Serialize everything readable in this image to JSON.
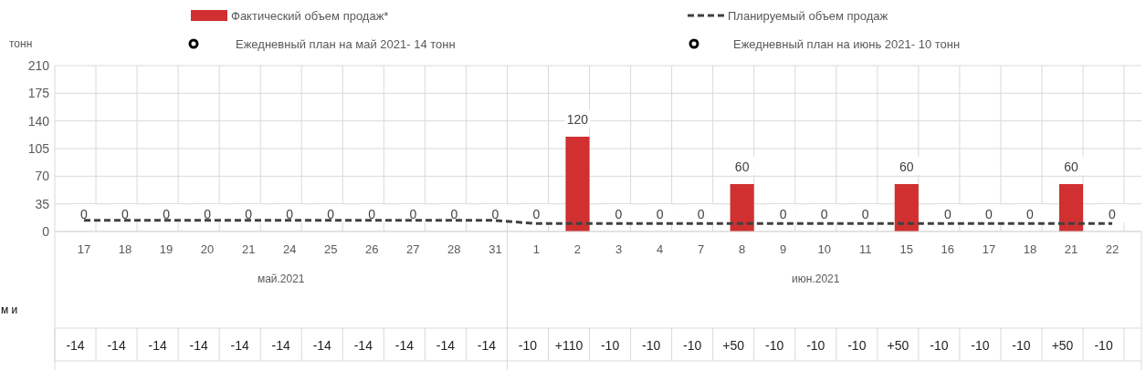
{
  "chart_data": {
    "type": "bar",
    "ylabel": "тонн",
    "categories": [
      "17",
      "18",
      "19",
      "20",
      "21",
      "24",
      "25",
      "26",
      "27",
      "28",
      "31",
      "1",
      "2",
      "3",
      "4",
      "7",
      "8",
      "9",
      "10",
      "11",
      "15",
      "16",
      "17",
      "18",
      "21",
      "22"
    ],
    "series": [
      {
        "name": "Фактический объем продаж*",
        "color": "#d03030",
        "values": [
          0,
          0,
          0,
          0,
          0,
          0,
          0,
          0,
          0,
          0,
          0,
          0,
          120,
          0,
          0,
          0,
          60,
          0,
          0,
          0,
          60,
          0,
          0,
          0,
          60,
          0
        ],
        "value_labels": [
          "0",
          "0",
          "0",
          "0",
          "0",
          "0",
          "0",
          "0",
          "0",
          "0",
          "0",
          "0",
          "120",
          "0",
          "0",
          "0",
          "60",
          "0",
          "0",
          "0",
          "60",
          "0",
          "0",
          "0",
          "60",
          "0"
        ]
      },
      {
        "name": "Планируемый объем продаж",
        "type": "line",
        "color": "#404040",
        "line_style": "dashed",
        "values": [
          14,
          14,
          14,
          14,
          14,
          14,
          14,
          14,
          14,
          14,
          14,
          10,
          10,
          10,
          10,
          10,
          10,
          10,
          10,
          10,
          10,
          10,
          10,
          10,
          10,
          10
        ]
      }
    ],
    "ylim": [
      0,
      210
    ],
    "yticks": [
      0,
      35,
      70,
      105,
      140,
      175,
      210
    ],
    "grid": true,
    "legend": "top",
    "annotations": [
      "Ежедневный план на май 2021-  14 тонн",
      "Ежедневный план на июнь 2021-  10 тонн",
      "май.2021",
      "июн.2021",
      "м и",
      "-14",
      "-14",
      "-14",
      "-14",
      "-14",
      "-14",
      "-14",
      "-14",
      "-14",
      "-14",
      "-14",
      "-10",
      "+110",
      "-10",
      "-10",
      "-10",
      "+50",
      "-10",
      "-10",
      "-10",
      "+50",
      "-10",
      "-10",
      "-10",
      "+50",
      "-10"
    ]
  }
}
